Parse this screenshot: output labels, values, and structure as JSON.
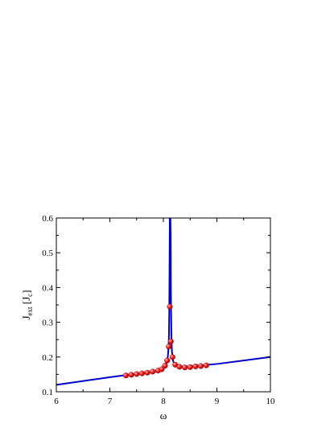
{
  "chart_data": {
    "type": "line",
    "xlabel": "ω",
    "ylabel": {
      "main": "J",
      "sub": "ext",
      "bracket_main": "J",
      "bracket_sub": "c"
    },
    "xlim": [
      6,
      10
    ],
    "ylim": [
      0.1,
      0.6
    ],
    "x_ticks": [
      "6",
      "7",
      "8",
      "9",
      "10"
    ],
    "y_ticks": [
      "0.1",
      "0.2",
      "0.3",
      "0.4",
      "0.5",
      "0.6"
    ],
    "x_tick_values": [
      6,
      7,
      8,
      9,
      10
    ],
    "y_tick_values": [
      0.1,
      0.2,
      0.3,
      0.4,
      0.5,
      0.6
    ],
    "grid": false,
    "series": [
      {
        "style": "line",
        "color": "#0000cc",
        "x": [
          6.0,
          6.5,
          7.0,
          7.5,
          7.8,
          7.9,
          7.95,
          8.0,
          8.03,
          8.06,
          8.08,
          8.09,
          8.1,
          8.105,
          8.11,
          8.115,
          8.12,
          8.125,
          8.13,
          8.135,
          8.14,
          8.15,
          8.16,
          8.18,
          8.2,
          8.25,
          8.3,
          8.4,
          8.6,
          9.0,
          9.5,
          10.0
        ],
        "y": [
          0.12,
          0.131,
          0.142,
          0.152,
          0.158,
          0.161,
          0.164,
          0.168,
          0.173,
          0.183,
          0.197,
          0.213,
          0.24,
          0.27,
          0.33,
          0.45,
          0.6,
          0.6,
          0.6,
          0.55,
          0.38,
          0.26,
          0.215,
          0.19,
          0.181,
          0.175,
          0.173,
          0.172,
          0.175,
          0.18,
          0.19,
          0.2
        ]
      },
      {
        "style": "scatter",
        "color": "#ee1111",
        "x": [
          7.3,
          7.4,
          7.5,
          7.6,
          7.7,
          7.8,
          7.9,
          7.97,
          8.03,
          8.07,
          8.1,
          8.12,
          8.14,
          8.17,
          8.22,
          8.3,
          8.4,
          8.5,
          8.6,
          8.7,
          8.8
        ],
        "y": [
          0.147,
          0.149,
          0.151,
          0.153,
          0.155,
          0.158,
          0.161,
          0.165,
          0.175,
          0.19,
          0.23,
          0.345,
          0.245,
          0.2,
          0.178,
          0.172,
          0.17,
          0.171,
          0.173,
          0.174,
          0.176
        ]
      }
    ]
  }
}
